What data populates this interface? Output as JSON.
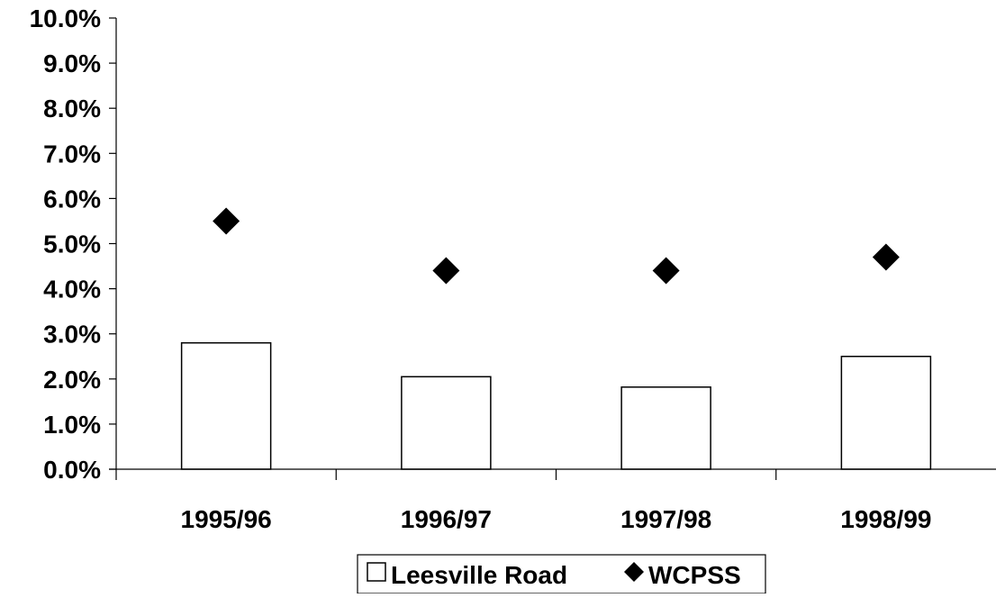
{
  "chart_data": {
    "type": "bar",
    "categories": [
      "1995/96",
      "1996/97",
      "1997/98",
      "1998/99"
    ],
    "series": [
      {
        "name": "Leesville Road",
        "kind": "bar",
        "fill": "#ffffff",
        "stroke": "#000000",
        "values": [
          2.8,
          2.05,
          1.82,
          2.5
        ]
      },
      {
        "name": "WCPSS",
        "kind": "marker",
        "marker": "diamond",
        "color": "#000000",
        "values": [
          5.5,
          4.4,
          4.4,
          4.7
        ]
      }
    ],
    "y_tick_labels": [
      "0.0%",
      "1.0%",
      "2.0%",
      "3.0%",
      "4.0%",
      "5.0%",
      "6.0%",
      "7.0%",
      "8.0%",
      "9.0%",
      "10.0%"
    ],
    "ylim": [
      0,
      10
    ],
    "y_unit": "%",
    "title": "",
    "xlabel": "",
    "ylabel": "",
    "grid": false,
    "legend_position": "bottom-center"
  }
}
